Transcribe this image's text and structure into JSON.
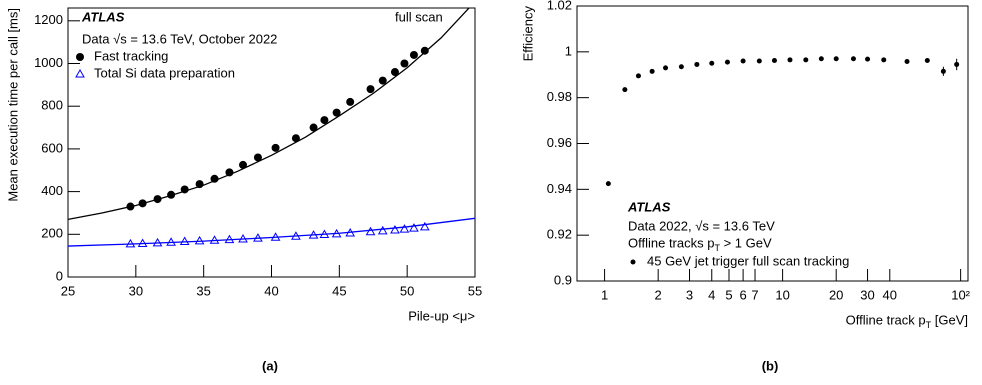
{
  "chart_data": [
    {
      "type": "scatter",
      "panel": "(a)",
      "xlabel": "Pile-up <μ>",
      "ylabel": "Mean execution time per call [ms]",
      "annotations": [
        "ATLAS",
        "Data √s = 13.6 TeV, October 2022",
        "full scan"
      ],
      "xlim": [
        25,
        55
      ],
      "ylim": [
        0,
        1260
      ],
      "xticks": [
        25,
        30,
        35,
        40,
        45,
        50,
        55
      ],
      "yticks": [
        0,
        200,
        400,
        600,
        800,
        1000,
        1200
      ],
      "series": [
        {
          "name": "Fast tracking",
          "marker": "circle",
          "color": "#000000",
          "x": [
            29.6,
            30.5,
            31.6,
            32.6,
            33.6,
            34.7,
            35.8,
            36.9,
            37.9,
            39.0,
            40.3,
            41.8,
            43.1,
            43.9,
            44.8,
            45.8,
            47.3,
            48.2,
            49.1,
            49.8,
            50.5,
            51.3
          ],
          "values": [
            330,
            345,
            365,
            385,
            410,
            435,
            460,
            490,
            525,
            560,
            605,
            650,
            700,
            735,
            770,
            820,
            880,
            920,
            960,
            1000,
            1040,
            1060
          ]
        },
        {
          "name": "Total Si data preparation",
          "marker": "triangle-open",
          "color": "#0000ff",
          "x": [
            29.6,
            30.5,
            31.6,
            32.6,
            33.6,
            34.7,
            35.8,
            36.9,
            37.9,
            39.0,
            40.3,
            41.8,
            43.1,
            43.9,
            44.8,
            45.8,
            47.3,
            48.2,
            49.1,
            49.8,
            50.5,
            51.3
          ],
          "values": [
            155,
            157,
            160,
            163,
            166,
            169,
            172,
            175,
            178,
            182,
            186,
            191,
            196,
            199,
            202,
            206,
            212,
            216,
            220,
            224,
            229,
            235
          ]
        },
        {
          "marker": "none",
          "color": "#000000",
          "x": [
            25,
            27.5,
            30,
            32.5,
            35,
            37.5,
            40,
            42.5,
            45,
            47.5,
            50,
            52.5,
            55
          ],
          "values": [
            270,
            300,
            335,
            380,
            430,
            495,
            570,
            655,
            755,
            860,
            980,
            1120,
            1290
          ]
        },
        {
          "marker": "none",
          "color": "#0000ff",
          "x": [
            25,
            30,
            35,
            40,
            45,
            50,
            55
          ],
          "values": [
            145,
            155,
            168,
            185,
            205,
            235,
            275
          ]
        }
      ]
    },
    {
      "type": "scatter",
      "panel": "(b)",
      "xlabel": "Offline track p_T [GeV]",
      "ylabel": "Efficiency",
      "logx": true,
      "annotations": [
        "ATLAS",
        "Data 2022, √s = 13.6 TeV",
        "Offline tracks p_T > 1 GeV"
      ],
      "xlim": [
        0.7,
        110
      ],
      "ylim": [
        0.9,
        1.02
      ],
      "xticks": [
        1,
        2,
        3,
        4,
        5,
        6,
        7,
        10,
        20,
        30,
        40,
        {
          "value": 100,
          "label": "10²"
        }
      ],
      "yticks": [
        0.9,
        0.92,
        0.94,
        0.96,
        0.98,
        1,
        1.02
      ],
      "series": [
        {
          "name": "45 GeV jet trigger full scan tracking",
          "marker": "circle",
          "color": "#000000",
          "x": [
            1.05,
            1.3,
            1.55,
            1.85,
            2.2,
            2.7,
            3.3,
            4.0,
            4.9,
            6.0,
            7.4,
            9,
            11,
            13.5,
            16.5,
            20,
            25,
            30,
            37,
            50,
            65,
            80,
            95
          ],
          "values": [
            0.9425,
            0.9835,
            0.9895,
            0.9915,
            0.993,
            0.9935,
            0.9945,
            0.995,
            0.9955,
            0.996,
            0.996,
            0.9962,
            0.9965,
            0.9965,
            0.997,
            0.997,
            0.997,
            0.9968,
            0.9965,
            0.9958,
            0.9962,
            0.9915,
            0.9945
          ],
          "errors": [
            0.0004,
            0.0003,
            0.0002,
            0.0002,
            0.0002,
            0.0002,
            0.0002,
            0.0002,
            0.0002,
            0.0002,
            0.0002,
            0.0002,
            0.0002,
            0.0002,
            0.0002,
            0.0002,
            0.0003,
            0.0003,
            0.0004,
            0.0006,
            0.0008,
            0.002,
            0.0025
          ]
        }
      ]
    }
  ]
}
